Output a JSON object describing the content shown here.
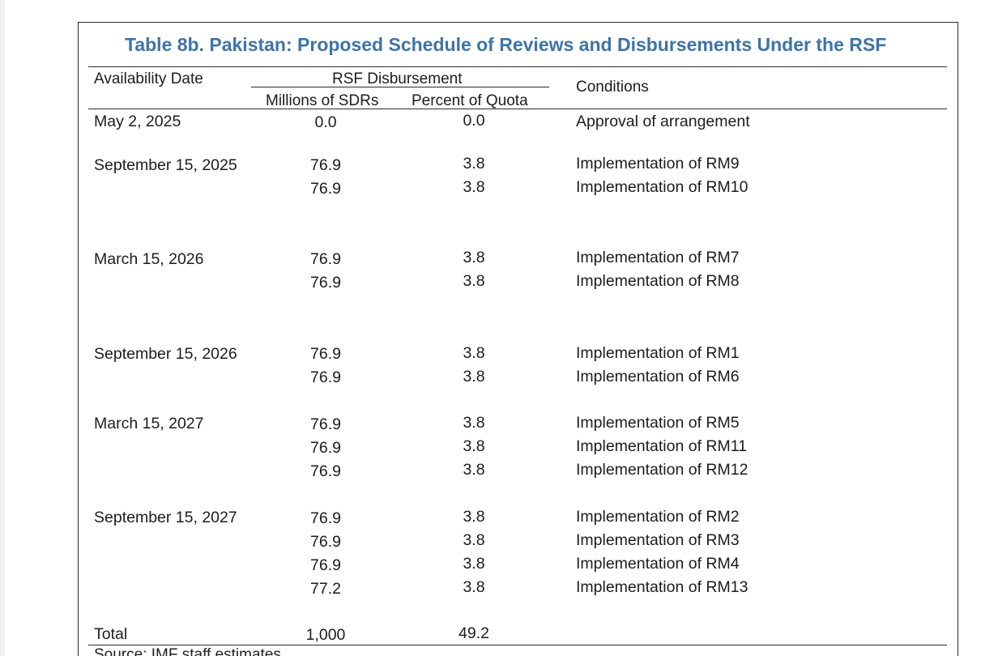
{
  "table": {
    "title": "Table 8b. Pakistan: Proposed Schedule of Reviews and Disbursements Under the RSF",
    "headers": {
      "availability_date": "Availability Date",
      "rsf_disbursement": "RSF Disbursement",
      "millions_sdrs": "Millions of SDRs",
      "percent_quota": "Percent of Quota",
      "conditions": "Conditions"
    },
    "rows": [
      {
        "date": "May 2, 2025",
        "sdr": "0.0",
        "pct": "0.0",
        "condition": "Approval of arrangement"
      },
      {
        "date": "September 15, 2025",
        "sdr": "76.9",
        "pct": "3.8",
        "condition": "Implementation of RM9"
      },
      {
        "date": "",
        "sdr": "76.9",
        "pct": "3.8",
        "condition": "Implementation of RM10"
      },
      {
        "date": "March 15, 2026",
        "sdr": "76.9",
        "pct": "3.8",
        "condition": "Implementation of RM7"
      },
      {
        "date": "",
        "sdr": "76.9",
        "pct": "3.8",
        "condition": "Implementation of RM8"
      },
      {
        "date": "September 15, 2026",
        "sdr": "76.9",
        "pct": "3.8",
        "condition": "Implementation of RM1"
      },
      {
        "date": "",
        "sdr": "76.9",
        "pct": "3.8",
        "condition": "Implementation of RM6"
      },
      {
        "date": "March 15, 2027",
        "sdr": "76.9",
        "pct": "3.8",
        "condition": "Implementation of RM5"
      },
      {
        "date": "",
        "sdr": "76.9",
        "pct": "3.8",
        "condition": "Implementation of RM11"
      },
      {
        "date": "",
        "sdr": "76.9",
        "pct": "3.8",
        "condition": "Implementation of RM12"
      },
      {
        "date": "September 15, 2027",
        "sdr": "76.9",
        "pct": "3.8",
        "condition": "Implementation of RM2"
      },
      {
        "date": "",
        "sdr": "76.9",
        "pct": "3.8",
        "condition": "Implementation of RM3"
      },
      {
        "date": "",
        "sdr": "76.9",
        "pct": "3.8",
        "condition": "Implementation of RM4"
      },
      {
        "date": "",
        "sdr": "77.2",
        "pct": "3.8",
        "condition": "Implementation of RM13"
      }
    ],
    "total": {
      "label": "Total",
      "sdr": "1,000",
      "pct": "49.2"
    },
    "source": "Source: IMF staff estimates."
  }
}
